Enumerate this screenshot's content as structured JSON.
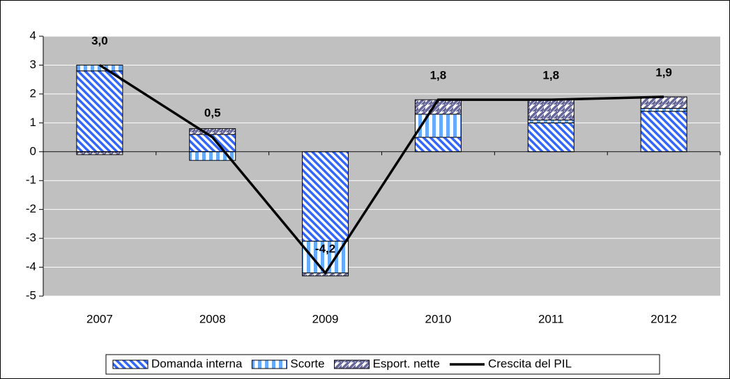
{
  "chart_data": {
    "type": "bar-line",
    "categories": [
      "2007",
      "2008",
      "2009",
      "2010",
      "2011",
      "2012"
    ],
    "series": [
      {
        "name": "Domanda interna",
        "type": "bar",
        "color": "#3366ff",
        "pattern": "diagonal-down",
        "values": [
          2.8,
          0.6,
          -3.1,
          0.5,
          1.0,
          1.4
        ]
      },
      {
        "name": "Scorte",
        "type": "bar",
        "color": "#66aaff",
        "pattern": "vertical",
        "values": [
          0.2,
          -0.3,
          -1.1,
          0.8,
          0.1,
          0.1
        ]
      },
      {
        "name": "Esport. nette",
        "type": "bar",
        "color": "#666699",
        "pattern": "diagonal-up",
        "values": [
          -0.1,
          0.2,
          -0.1,
          0.5,
          0.7,
          0.4
        ]
      },
      {
        "name": "Crescita del PIL",
        "type": "line",
        "color": "#000000",
        "values": [
          3.0,
          0.5,
          -4.2,
          1.8,
          1.8,
          1.9
        ],
        "value_labels": [
          "3,0",
          "0,5",
          "-4,2",
          "1,8",
          "1,8",
          "1,9"
        ]
      }
    ],
    "ylim": [
      -5,
      4
    ],
    "yticks": [
      -5,
      -4,
      -3,
      -2,
      -1,
      0,
      1,
      2,
      3,
      4
    ],
    "grid": true,
    "legend": "bottom"
  }
}
